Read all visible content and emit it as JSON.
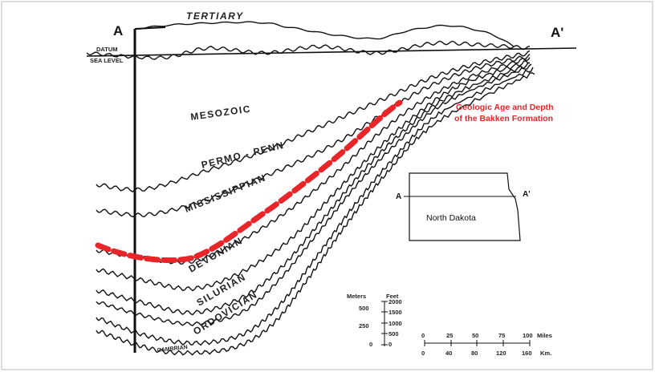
{
  "section": {
    "left_end_label": "A",
    "right_end_label": "A'",
    "datum_label": "DATUM",
    "sea_level_label": "SEA LEVEL",
    "units": [
      "TERTIARY",
      "MESOZOIC",
      "PERMO - PENN",
      "MISSISSIPPIAN",
      "DEVONIAN",
      "SILURIAN",
      "ORDOVICIAN",
      "CAMBRIAN"
    ]
  },
  "title": {
    "line1": "Geologic Age and Depth",
    "line2": "of the Bakken Formation",
    "color": "#e8262a"
  },
  "bakken_color": "#e8262a",
  "inset_map": {
    "left_label": "A",
    "right_label": "A'",
    "state_label": "North Dakota"
  },
  "vertical_scale": {
    "meters_header": "Meters",
    "feet_header": "Feet",
    "meters_ticks": [
      "500",
      "250",
      "0"
    ],
    "feet_ticks": [
      "2000",
      "1500",
      "1000",
      "500",
      "0"
    ]
  },
  "horizontal_scale": {
    "miles_ticks": [
      "0",
      "25",
      "50",
      "75",
      "100"
    ],
    "miles_unit": "Miles",
    "km_ticks": [
      "0",
      "40",
      "80",
      "120",
      "160"
    ],
    "km_unit": "Km."
  }
}
